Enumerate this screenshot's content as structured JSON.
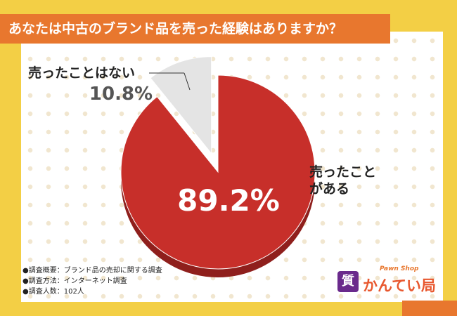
{
  "chart_data": {
    "type": "pie",
    "title": "あなたは中古のブランド品を売った経験はありますか？",
    "categories": [
      "売ったことがある",
      "売ったことはない"
    ],
    "values": [
      89.2,
      10.8
    ],
    "value_labels": [
      "89.2%",
      "10.8%"
    ],
    "colors": [
      "#c72f2a",
      "#e4e4e4"
    ]
  },
  "notes": [
    "●調査概要：ブランド品の売却に関する調査",
    "●調査方法：インターネット調査",
    "●調査人数：102人"
  ],
  "logo": {
    "tagline": "Pawn Shop",
    "name": "かんてい局",
    "mark": "質"
  }
}
